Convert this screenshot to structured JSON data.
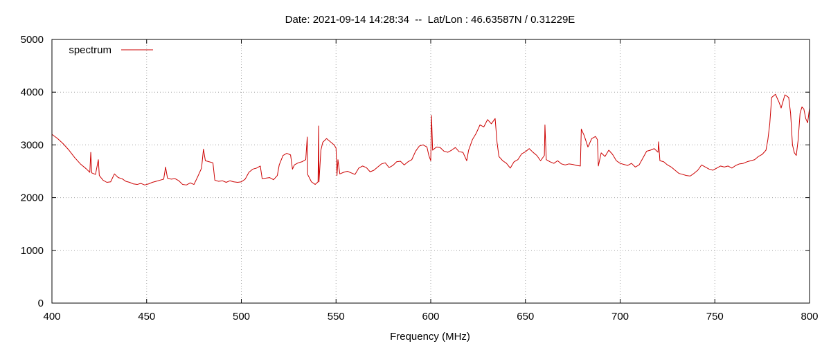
{
  "chart_data": {
    "type": "line",
    "title": "Date: 2021-09-14 14:28:34  --  Lat/Lon : 46.63587N / 0.31229E",
    "xlabel": "Frequency (MHz)",
    "ylabel": "",
    "xlim": [
      400,
      800
    ],
    "ylim": [
      0,
      5000
    ],
    "x_ticks": [
      400,
      450,
      500,
      550,
      600,
      650,
      700,
      750,
      800
    ],
    "y_ticks": [
      0,
      1000,
      2000,
      3000,
      4000,
      5000
    ],
    "grid": true,
    "legend_position": "top-left",
    "series": [
      {
        "name": "spectrum",
        "color": "#cc0000",
        "points": [
          [
            400,
            3200
          ],
          [
            403,
            3120
          ],
          [
            406,
            3020
          ],
          [
            409,
            2900
          ],
          [
            412,
            2760
          ],
          [
            415,
            2640
          ],
          [
            418,
            2550
          ],
          [
            420,
            2480
          ],
          [
            420.5,
            2860
          ],
          [
            421,
            2470
          ],
          [
            423,
            2440
          ],
          [
            424.5,
            2720
          ],
          [
            425,
            2420
          ],
          [
            427,
            2330
          ],
          [
            429,
            2290
          ],
          [
            431,
            2300
          ],
          [
            433,
            2450
          ],
          [
            435,
            2380
          ],
          [
            437,
            2360
          ],
          [
            439,
            2310
          ],
          [
            441,
            2290
          ],
          [
            443,
            2260
          ],
          [
            445,
            2250
          ],
          [
            447,
            2270
          ],
          [
            449,
            2240
          ],
          [
            451,
            2260
          ],
          [
            453,
            2290
          ],
          [
            455,
            2310
          ],
          [
            457,
            2330
          ],
          [
            459,
            2350
          ],
          [
            460,
            2580
          ],
          [
            461,
            2370
          ],
          [
            463,
            2350
          ],
          [
            465,
            2360
          ],
          [
            467,
            2320
          ],
          [
            469,
            2250
          ],
          [
            471,
            2240
          ],
          [
            473,
            2280
          ],
          [
            475,
            2250
          ],
          [
            477,
            2400
          ],
          [
            479,
            2560
          ],
          [
            480,
            2920
          ],
          [
            481,
            2700
          ],
          [
            483,
            2680
          ],
          [
            485,
            2660
          ],
          [
            486,
            2330
          ],
          [
            488,
            2310
          ],
          [
            490,
            2320
          ],
          [
            492,
            2290
          ],
          [
            494,
            2320
          ],
          [
            496,
            2300
          ],
          [
            498,
            2290
          ],
          [
            500,
            2300
          ],
          [
            502,
            2350
          ],
          [
            504,
            2480
          ],
          [
            506,
            2540
          ],
          [
            508,
            2560
          ],
          [
            510,
            2600
          ],
          [
            511,
            2360
          ],
          [
            513,
            2370
          ],
          [
            515,
            2380
          ],
          [
            517,
            2340
          ],
          [
            519,
            2420
          ],
          [
            520,
            2620
          ],
          [
            522,
            2800
          ],
          [
            524,
            2840
          ],
          [
            526,
            2810
          ],
          [
            527,
            2540
          ],
          [
            528,
            2620
          ],
          [
            530,
            2660
          ],
          [
            532,
            2680
          ],
          [
            534,
            2720
          ],
          [
            534.8,
            3150
          ],
          [
            535,
            2440
          ],
          [
            537,
            2300
          ],
          [
            539,
            2250
          ],
          [
            540.5,
            2300
          ],
          [
            540.8,
            3360
          ],
          [
            541,
            2300
          ],
          [
            542,
            2900
          ],
          [
            543,
            3050
          ],
          [
            545,
            3120
          ],
          [
            547,
            3060
          ],
          [
            549,
            3000
          ],
          [
            550,
            2940
          ],
          [
            550.5,
            2420
          ],
          [
            551,
            2720
          ],
          [
            552,
            2450
          ],
          [
            554,
            2480
          ],
          [
            556,
            2500
          ],
          [
            558,
            2470
          ],
          [
            560,
            2440
          ],
          [
            562,
            2560
          ],
          [
            564,
            2600
          ],
          [
            566,
            2570
          ],
          [
            568,
            2490
          ],
          [
            570,
            2520
          ],
          [
            572,
            2580
          ],
          [
            574,
            2640
          ],
          [
            576,
            2660
          ],
          [
            578,
            2570
          ],
          [
            580,
            2610
          ],
          [
            582,
            2680
          ],
          [
            584,
            2690
          ],
          [
            586,
            2620
          ],
          [
            588,
            2680
          ],
          [
            590,
            2720
          ],
          [
            592,
            2880
          ],
          [
            594,
            2980
          ],
          [
            596,
            3000
          ],
          [
            598,
            2960
          ],
          [
            599,
            2800
          ],
          [
            600,
            2700
          ],
          [
            600.4,
            3560
          ],
          [
            601,
            2900
          ],
          [
            603,
            2960
          ],
          [
            605,
            2950
          ],
          [
            607,
            2880
          ],
          [
            609,
            2860
          ],
          [
            611,
            2900
          ],
          [
            613,
            2950
          ],
          [
            615,
            2870
          ],
          [
            617,
            2860
          ],
          [
            619,
            2700
          ],
          [
            620,
            2900
          ],
          [
            622,
            3100
          ],
          [
            624,
            3220
          ],
          [
            626,
            3380
          ],
          [
            628,
            3340
          ],
          [
            630,
            3480
          ],
          [
            632,
            3400
          ],
          [
            634,
            3500
          ],
          [
            635,
            3050
          ],
          [
            636,
            2780
          ],
          [
            638,
            2700
          ],
          [
            640,
            2650
          ],
          [
            642,
            2560
          ],
          [
            644,
            2680
          ],
          [
            646,
            2720
          ],
          [
            648,
            2830
          ],
          [
            650,
            2870
          ],
          [
            652,
            2930
          ],
          [
            654,
            2860
          ],
          [
            656,
            2800
          ],
          [
            658,
            2700
          ],
          [
            660,
            2800
          ],
          [
            660.3,
            3380
          ],
          [
            661,
            2720
          ],
          [
            663,
            2680
          ],
          [
            665,
            2650
          ],
          [
            667,
            2700
          ],
          [
            669,
            2640
          ],
          [
            671,
            2620
          ],
          [
            673,
            2640
          ],
          [
            675,
            2630
          ],
          [
            677,
            2610
          ],
          [
            679,
            2600
          ],
          [
            679.5,
            3300
          ],
          [
            681,
            3180
          ],
          [
            683,
            2960
          ],
          [
            685,
            3120
          ],
          [
            687,
            3160
          ],
          [
            688,
            3100
          ],
          [
            688.5,
            2600
          ],
          [
            690,
            2850
          ],
          [
            692,
            2780
          ],
          [
            694,
            2900
          ],
          [
            696,
            2820
          ],
          [
            698,
            2700
          ],
          [
            700,
            2650
          ],
          [
            702,
            2630
          ],
          [
            704,
            2610
          ],
          [
            706,
            2650
          ],
          [
            708,
            2580
          ],
          [
            710,
            2620
          ],
          [
            712,
            2750
          ],
          [
            714,
            2880
          ],
          [
            716,
            2900
          ],
          [
            718,
            2930
          ],
          [
            720,
            2860
          ],
          [
            720.3,
            3060
          ],
          [
            721,
            2700
          ],
          [
            723,
            2680
          ],
          [
            725,
            2620
          ],
          [
            727,
            2580
          ],
          [
            729,
            2520
          ],
          [
            731,
            2460
          ],
          [
            733,
            2440
          ],
          [
            735,
            2420
          ],
          [
            737,
            2410
          ],
          [
            739,
            2460
          ],
          [
            741,
            2520
          ],
          [
            743,
            2620
          ],
          [
            745,
            2580
          ],
          [
            747,
            2540
          ],
          [
            749,
            2520
          ],
          [
            751,
            2560
          ],
          [
            753,
            2600
          ],
          [
            755,
            2580
          ],
          [
            757,
            2600
          ],
          [
            759,
            2560
          ],
          [
            761,
            2610
          ],
          [
            763,
            2640
          ],
          [
            765,
            2650
          ],
          [
            767,
            2680
          ],
          [
            769,
            2700
          ],
          [
            771,
            2720
          ],
          [
            773,
            2780
          ],
          [
            775,
            2820
          ],
          [
            777,
            2900
          ],
          [
            778,
            3100
          ],
          [
            779,
            3400
          ],
          [
            780,
            3900
          ],
          [
            782,
            3960
          ],
          [
            784,
            3800
          ],
          [
            785,
            3700
          ],
          [
            787,
            3950
          ],
          [
            789,
            3900
          ],
          [
            790,
            3600
          ],
          [
            791,
            3000
          ],
          [
            792,
            2850
          ],
          [
            793,
            2800
          ],
          [
            794,
            3100
          ],
          [
            795,
            3600
          ],
          [
            796,
            3720
          ],
          [
            797,
            3680
          ],
          [
            798,
            3500
          ],
          [
            799,
            3420
          ],
          [
            800,
            3700
          ]
        ]
      }
    ]
  }
}
